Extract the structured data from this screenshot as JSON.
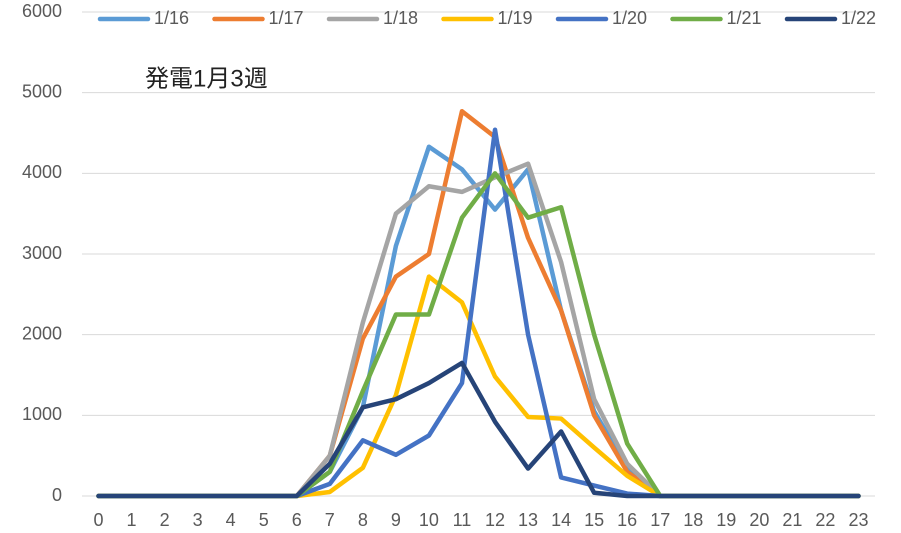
{
  "chart_data": {
    "type": "line",
    "annotation": "発電1月3週",
    "categories": [
      "0",
      "1",
      "2",
      "3",
      "4",
      "5",
      "6",
      "7",
      "8",
      "9",
      "10",
      "11",
      "12",
      "13",
      "14",
      "15",
      "16",
      "17",
      "18",
      "19",
      "20",
      "21",
      "22",
      "23"
    ],
    "ylim": [
      0,
      6000
    ],
    "yticks": [
      0,
      1000,
      2000,
      3000,
      4000,
      5000,
      6000
    ],
    "grid": true,
    "legend": "top",
    "series": [
      {
        "name": "1/16",
        "color": "#5b9bd5",
        "values": [
          0,
          0,
          0,
          0,
          0,
          0,
          0,
          300,
          1100,
          3100,
          4330,
          4050,
          3550,
          4050,
          2300,
          1050,
          350,
          0,
          0,
          0,
          0,
          0,
          0,
          0
        ]
      },
      {
        "name": "1/17",
        "color": "#ed7d31",
        "values": [
          0,
          0,
          0,
          0,
          0,
          0,
          0,
          500,
          1950,
          2720,
          3000,
          4770,
          4450,
          3200,
          2300,
          1000,
          300,
          0,
          0,
          0,
          0,
          0,
          0,
          0
        ]
      },
      {
        "name": "1/18",
        "color": "#a5a5a5",
        "values": [
          0,
          0,
          0,
          0,
          0,
          0,
          0,
          500,
          2150,
          3500,
          3840,
          3770,
          3950,
          4120,
          2900,
          1200,
          400,
          0,
          0,
          0,
          0,
          0,
          0,
          0
        ]
      },
      {
        "name": "1/19",
        "color": "#ffc000",
        "values": [
          0,
          0,
          0,
          0,
          0,
          0,
          0,
          50,
          350,
          1250,
          2720,
          2400,
          1480,
          980,
          960,
          600,
          250,
          0,
          0,
          0,
          0,
          0,
          0,
          0
        ]
      },
      {
        "name": "1/20",
        "color": "#4472c4",
        "values": [
          0,
          0,
          0,
          0,
          0,
          0,
          0,
          150,
          690,
          510,
          750,
          1400,
          4540,
          2000,
          230,
          130,
          30,
          0,
          0,
          0,
          0,
          0,
          0,
          0
        ]
      },
      {
        "name": "1/21",
        "color": "#70ad47",
        "values": [
          0,
          0,
          0,
          0,
          0,
          0,
          0,
          300,
          1300,
          2250,
          2250,
          3450,
          4000,
          3450,
          3580,
          2000,
          650,
          0,
          0,
          0,
          0,
          0,
          0,
          0
        ]
      },
      {
        "name": "1/22",
        "color": "#264478",
        "values": [
          0,
          0,
          0,
          0,
          0,
          0,
          0,
          400,
          1100,
          1200,
          1400,
          1650,
          920,
          340,
          800,
          40,
          0,
          0,
          0,
          0,
          0,
          0,
          0,
          0
        ]
      }
    ]
  }
}
